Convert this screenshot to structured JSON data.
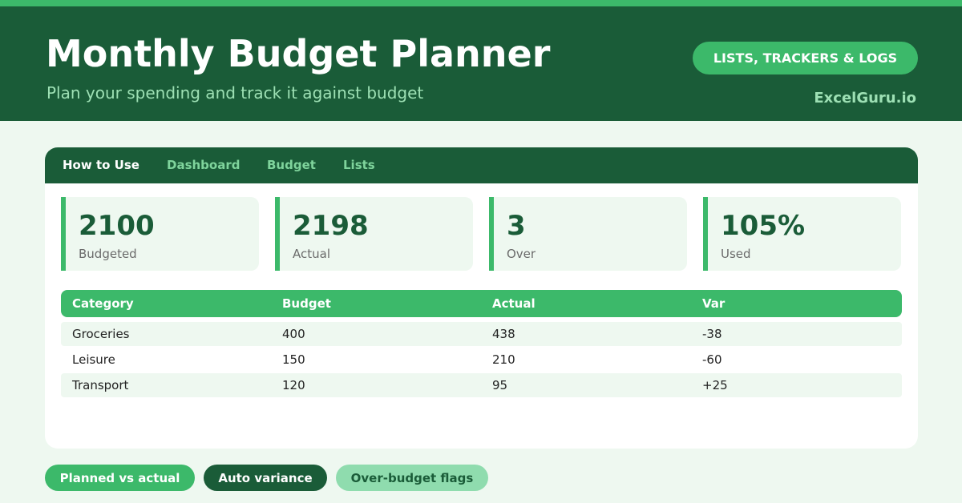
{
  "header": {
    "title": "Monthly Budget Planner",
    "subtitle": "Plan your spending and track it against budget",
    "badge": "LISTS, TRACKERS & LOGS",
    "brand": "ExcelGuru.io"
  },
  "tabs": [
    "How to Use",
    "Dashboard",
    "Budget",
    "Lists"
  ],
  "stats": [
    {
      "value": "2100",
      "label": "Budgeted"
    },
    {
      "value": "2198",
      "label": "Actual"
    },
    {
      "value": "3",
      "label": "Over"
    },
    {
      "value": "105%",
      "label": "Used"
    }
  ],
  "table": {
    "columns": [
      "Category",
      "Budget",
      "Actual",
      "Var"
    ],
    "rows": [
      [
        "Groceries",
        "400",
        "438",
        "-38"
      ],
      [
        "Leisure",
        "150",
        "210",
        "-60"
      ],
      [
        "Transport",
        "120",
        "95",
        "+25"
      ]
    ]
  },
  "features": [
    "Planned vs actual",
    "Auto variance",
    "Over-budget flags"
  ]
}
